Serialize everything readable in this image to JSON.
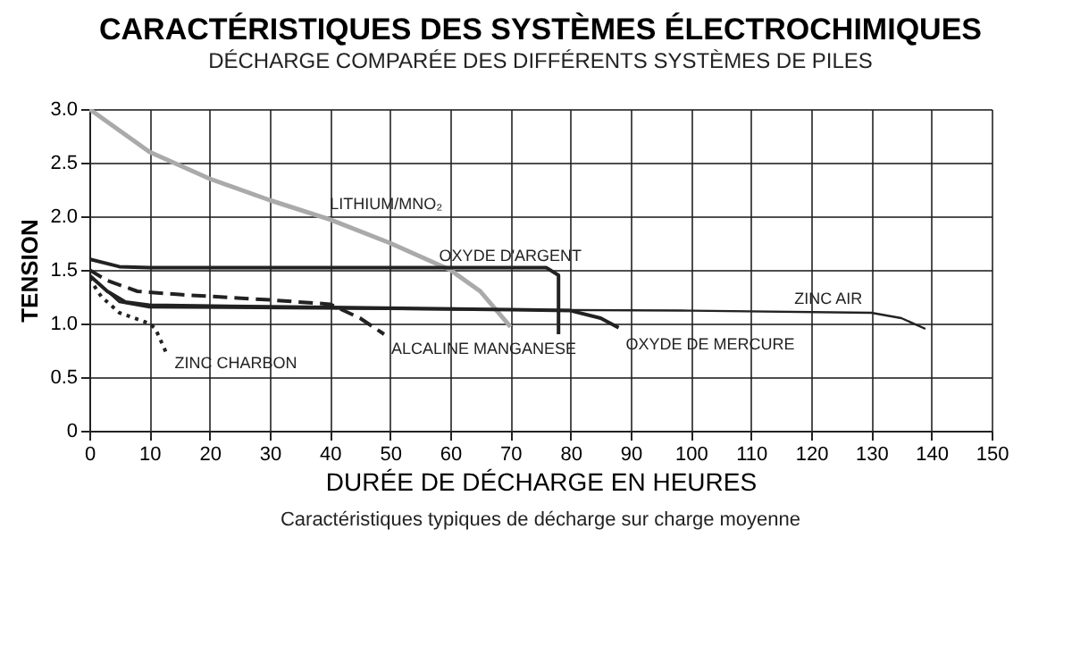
{
  "chart_data": {
    "type": "line",
    "title": "CARACTÉRISTIQUES DES SYSTÈMES ÉLECTROCHIMIQUES",
    "subtitle": "DÉCHARGE COMPARÉE DES DIFFÉRENTS SYSTÈMES DE PILES",
    "xlabel": "DURÉE DE DÉCHARGE EN HEURES",
    "ylabel": "TENSION",
    "annotations": [
      "Caractéristiques typiques de décharge sur charge moyenne"
    ],
    "series": [
      {
        "name": "LITHIUM/MNO₂",
        "color": "#aaaaaa",
        "x": [
          0,
          5,
          10,
          20,
          30,
          40,
          50,
          60,
          65,
          70
        ],
        "values": [
          3.0,
          2.8,
          2.6,
          2.35,
          2.15,
          1.97,
          1.75,
          1.5,
          1.3,
          0.97
        ]
      },
      {
        "name": "OXYDE D'ARGENT",
        "color": "#222222",
        "x": [
          0,
          5,
          10,
          40,
          70,
          76,
          78,
          78
        ],
        "values": [
          1.6,
          1.53,
          1.52,
          1.52,
          1.52,
          1.52,
          1.45,
          0.9
        ]
      },
      {
        "name": "ALCALINE MANGANESE",
        "color": "#222222",
        "line_style": "dashed",
        "x": [
          0,
          3,
          8,
          15,
          30,
          40,
          45,
          49
        ],
        "values": [
          1.5,
          1.4,
          1.3,
          1.27,
          1.22,
          1.18,
          1.05,
          0.9
        ]
      },
      {
        "name": "ZINC CHARBON",
        "color": "#222222",
        "line_style": "dotted",
        "x": [
          0,
          2,
          5,
          10,
          11,
          13
        ],
        "values": [
          1.42,
          1.25,
          1.1,
          1.0,
          0.95,
          0.7
        ]
      },
      {
        "name": "OXYDE DE MERCURE",
        "color": "#222222",
        "x": [
          0,
          3,
          6,
          10,
          40,
          70,
          80,
          85,
          88
        ],
        "values": [
          1.45,
          1.3,
          1.2,
          1.17,
          1.15,
          1.13,
          1.12,
          1.05,
          0.96
        ]
      },
      {
        "name": "ZINC AIR",
        "color": "#222222",
        "x": [
          0,
          5,
          10,
          60,
          100,
          130,
          135,
          139
        ],
        "values": [
          1.45,
          1.2,
          1.15,
          1.13,
          1.12,
          1.1,
          1.05,
          0.95
        ]
      }
    ],
    "xlim": [
      0,
      150
    ],
    "xticks": [
      0,
      10,
      20,
      30,
      40,
      50,
      60,
      70,
      80,
      90,
      100,
      110,
      120,
      130,
      140,
      150
    ],
    "ylim": [
      0,
      3
    ],
    "yticks": [
      {
        "value": 0,
        "label": "0"
      },
      0.5,
      {
        "value": 1,
        "label": "1.0"
      },
      1.5,
      {
        "value": 2,
        "label": "2.0"
      },
      2.5,
      {
        "value": 3,
        "label": "3.0"
      }
    ],
    "grid": true,
    "legend": false,
    "marker": "none",
    "line_style": "solid"
  }
}
